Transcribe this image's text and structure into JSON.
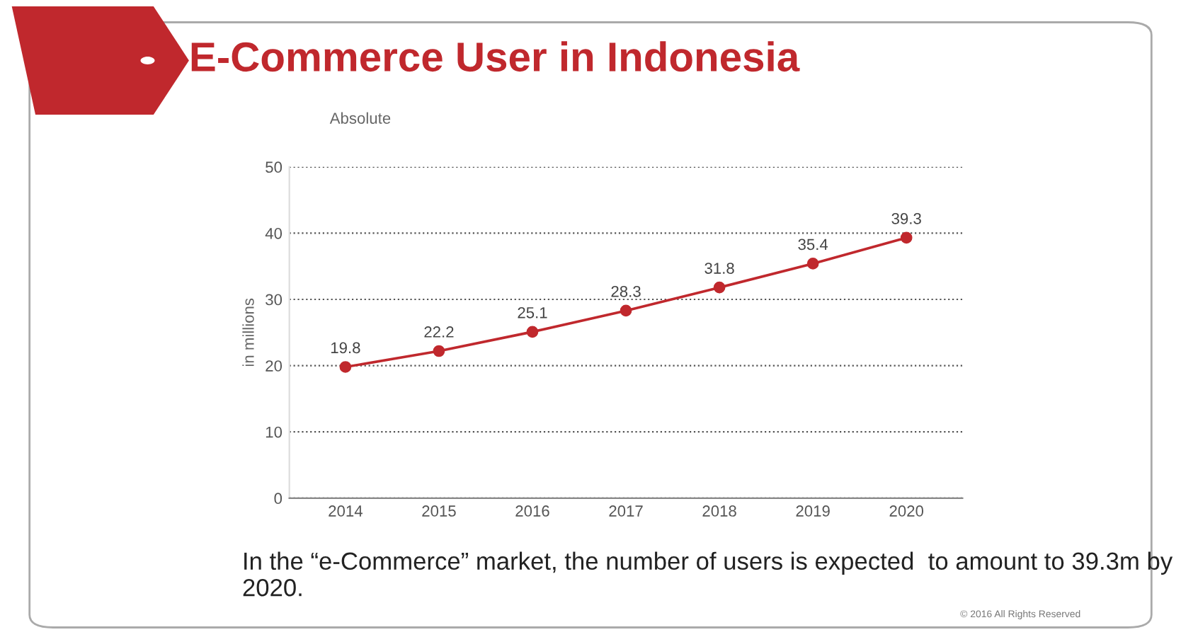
{
  "chart_data": {
    "type": "line",
    "title": "E-Commerce User in Indonesia",
    "subtitle": "Absolute",
    "ylabel": "in millions",
    "categories": [
      "2014",
      "2015",
      "2016",
      "2017",
      "2018",
      "2019",
      "2020"
    ],
    "series": [
      {
        "color": "#c0282d",
        "values": [
          19.8,
          22.2,
          25.1,
          28.3,
          31.8,
          35.4,
          39.3
        ]
      }
    ],
    "ylim": [
      0,
      50
    ],
    "yticks": [
      0,
      10,
      20,
      30,
      40,
      50
    ],
    "grid": "y",
    "marker": "circle",
    "line_style": "solid",
    "data_labels": true,
    "legend": false,
    "annotations": [
      "In the “e-Commerce” market, the number of users is expected  to amount to 39.3m by 2020.",
      "© 2016 All Rights Reserved"
    ]
  }
}
